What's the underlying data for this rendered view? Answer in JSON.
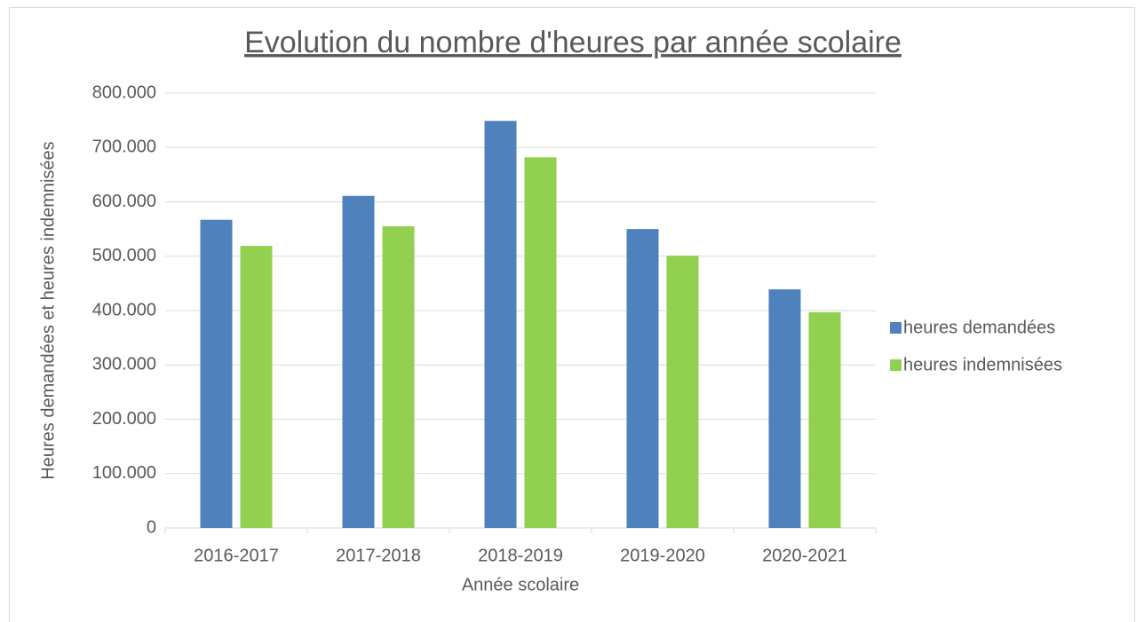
{
  "chart_data": {
    "type": "bar",
    "title": "Evolution du nombre d'heures par année scolaire",
    "x_label": "Année scolaire",
    "y_label": "Heures demandées et heures indemnisées",
    "categories": [
      "2016-2017",
      "2017-2018",
      "2018-2019",
      "2019-2020",
      "2020-2021"
    ],
    "series": [
      {
        "name": "heures demandées",
        "color": "#4f81bd",
        "values": [
          567000,
          611000,
          749000,
          550000,
          439000
        ]
      },
      {
        "name": "heures indemnisées",
        "color": "#92d050",
        "values": [
          519000,
          555000,
          682000,
          501000,
          397000
        ]
      }
    ],
    "ylim": [
      0,
      800000
    ],
    "yticks": [
      0,
      {
        "value": 100000,
        "label": "100.000"
      },
      {
        "value": 200000,
        "label": "200.000"
      },
      {
        "value": 300000,
        "label": "300.000"
      },
      {
        "value": 400000,
        "label": "400.000"
      },
      {
        "value": 500000,
        "label": "500.000"
      },
      {
        "value": 600000,
        "label": "600.000"
      },
      {
        "value": 700000,
        "label": "700.000"
      },
      {
        "value": 800000,
        "label": "800.000"
      }
    ],
    "grid": true,
    "legend": "right"
  }
}
